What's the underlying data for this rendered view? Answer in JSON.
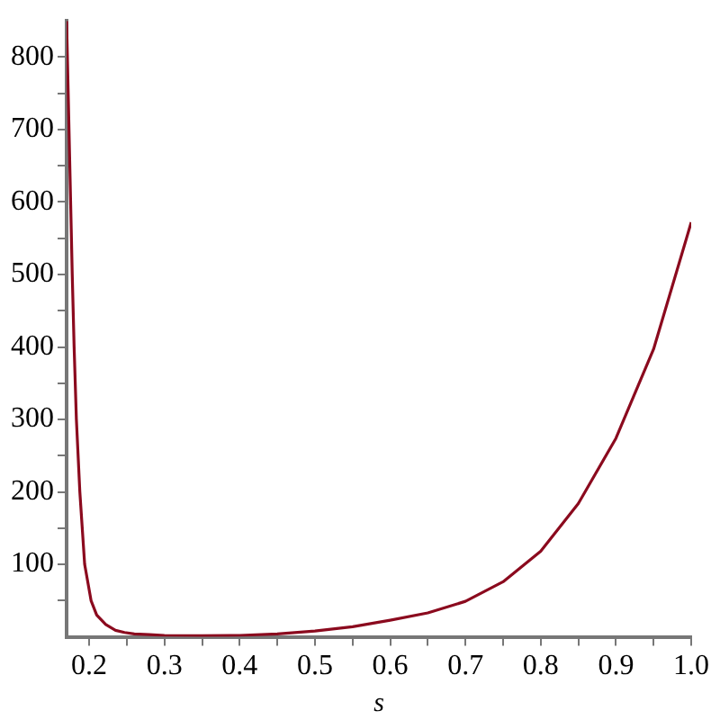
{
  "chart_data": {
    "type": "line",
    "xlabel": "s",
    "x": [
      0.17,
      0.1775,
      0.18,
      0.183,
      0.1876,
      0.194,
      0.2025,
      0.21,
      0.222,
      0.235,
      0.247,
      0.26,
      0.28,
      0.3,
      0.35,
      0.4,
      0.45,
      0.5,
      0.55,
      0.6,
      0.65,
      0.7,
      0.75,
      0.8,
      0.85,
      0.9,
      0.95,
      1.0
    ],
    "series": [
      {
        "color": "#8b0a1e",
        "values": [
          850,
          500,
          400,
          300,
          200,
          100,
          50,
          30,
          17,
          9,
          6,
          4,
          3,
          2,
          1.5,
          2,
          4,
          8,
          14,
          23,
          33,
          49,
          76,
          118,
          184,
          274,
          397,
          572
        ]
      }
    ],
    "xlim": [
      0.17,
      1.0
    ],
    "xticks": [
      0.2,
      {
        "value": 0.25,
        "label": null
      },
      0.3,
      {
        "value": 0.35,
        "label": null
      },
      0.4,
      {
        "value": 0.45,
        "label": null
      },
      0.5,
      {
        "value": 0.55,
        "label": null
      },
      0.6,
      {
        "value": 0.65,
        "label": null
      },
      0.7,
      {
        "value": 0.75,
        "label": null
      },
      0.8,
      {
        "value": 0.85,
        "label": null
      },
      0.9,
      {
        "value": 0.95,
        "label": null
      },
      {
        "value": 1.0,
        "label": "1.0"
      }
    ],
    "ylim": [
      0,
      850
    ],
    "yticks": [
      {
        "value": 50,
        "label": null
      },
      100,
      {
        "value": 150,
        "label": null
      },
      200,
      {
        "value": 250,
        "label": null
      },
      300,
      {
        "value": 350,
        "label": null
      },
      400,
      {
        "value": 450,
        "label": null
      },
      500,
      {
        "value": 550,
        "label": null
      },
      600,
      {
        "value": 650,
        "label": null
      },
      700,
      {
        "value": 750,
        "label": null
      },
      800
    ],
    "grid": false,
    "legend": false,
    "marker": "none",
    "line_style": "solid"
  }
}
